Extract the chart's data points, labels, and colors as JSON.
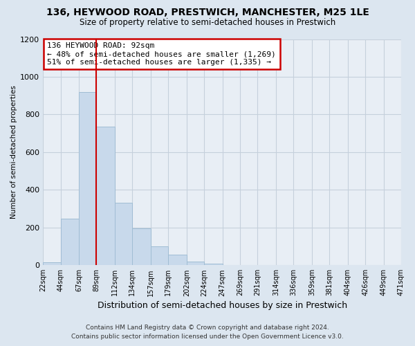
{
  "title": "136, HEYWOOD ROAD, PRESTWICH, MANCHESTER, M25 1LE",
  "subtitle": "Size of property relative to semi-detached houses in Prestwich",
  "xlabel": "Distribution of semi-detached houses by size in Prestwich",
  "ylabel": "Number of semi-detached properties",
  "bar_color": "#c8d9eb",
  "bar_edge_color": "#a0bdd4",
  "annotation_text_line1": "136 HEYWOOD ROAD: 92sqm",
  "annotation_text_line2": "← 48% of semi-detached houses are smaller (1,269)",
  "annotation_text_line3": "51% of semi-detached houses are larger (1,335) →",
  "property_line_x": 89,
  "property_line_color": "#cc0000",
  "annotation_box_facecolor": "#ffffff",
  "annotation_box_edgecolor": "#cc0000",
  "footer_line1": "Contains HM Land Registry data © Crown copyright and database right 2024.",
  "footer_line2": "Contains public sector information licensed under the Open Government Licence v3.0.",
  "fig_facecolor": "#dce6f0",
  "plot_facecolor": "#e8eef5",
  "grid_color": "#c5d0dc",
  "ylim": [
    0,
    1200
  ],
  "yticks": [
    0,
    200,
    400,
    600,
    800,
    1000,
    1200
  ],
  "bin_edges": [
    22,
    44,
    67,
    89,
    112,
    134,
    157,
    179,
    202,
    224,
    247,
    269,
    291,
    314,
    336,
    359,
    381,
    404,
    426,
    449,
    471
  ],
  "bar_heights": [
    15,
    248,
    920,
    735,
    330,
    195,
    100,
    55,
    20,
    10,
    2,
    0,
    0,
    0,
    0,
    0,
    0,
    0,
    0,
    0
  ]
}
